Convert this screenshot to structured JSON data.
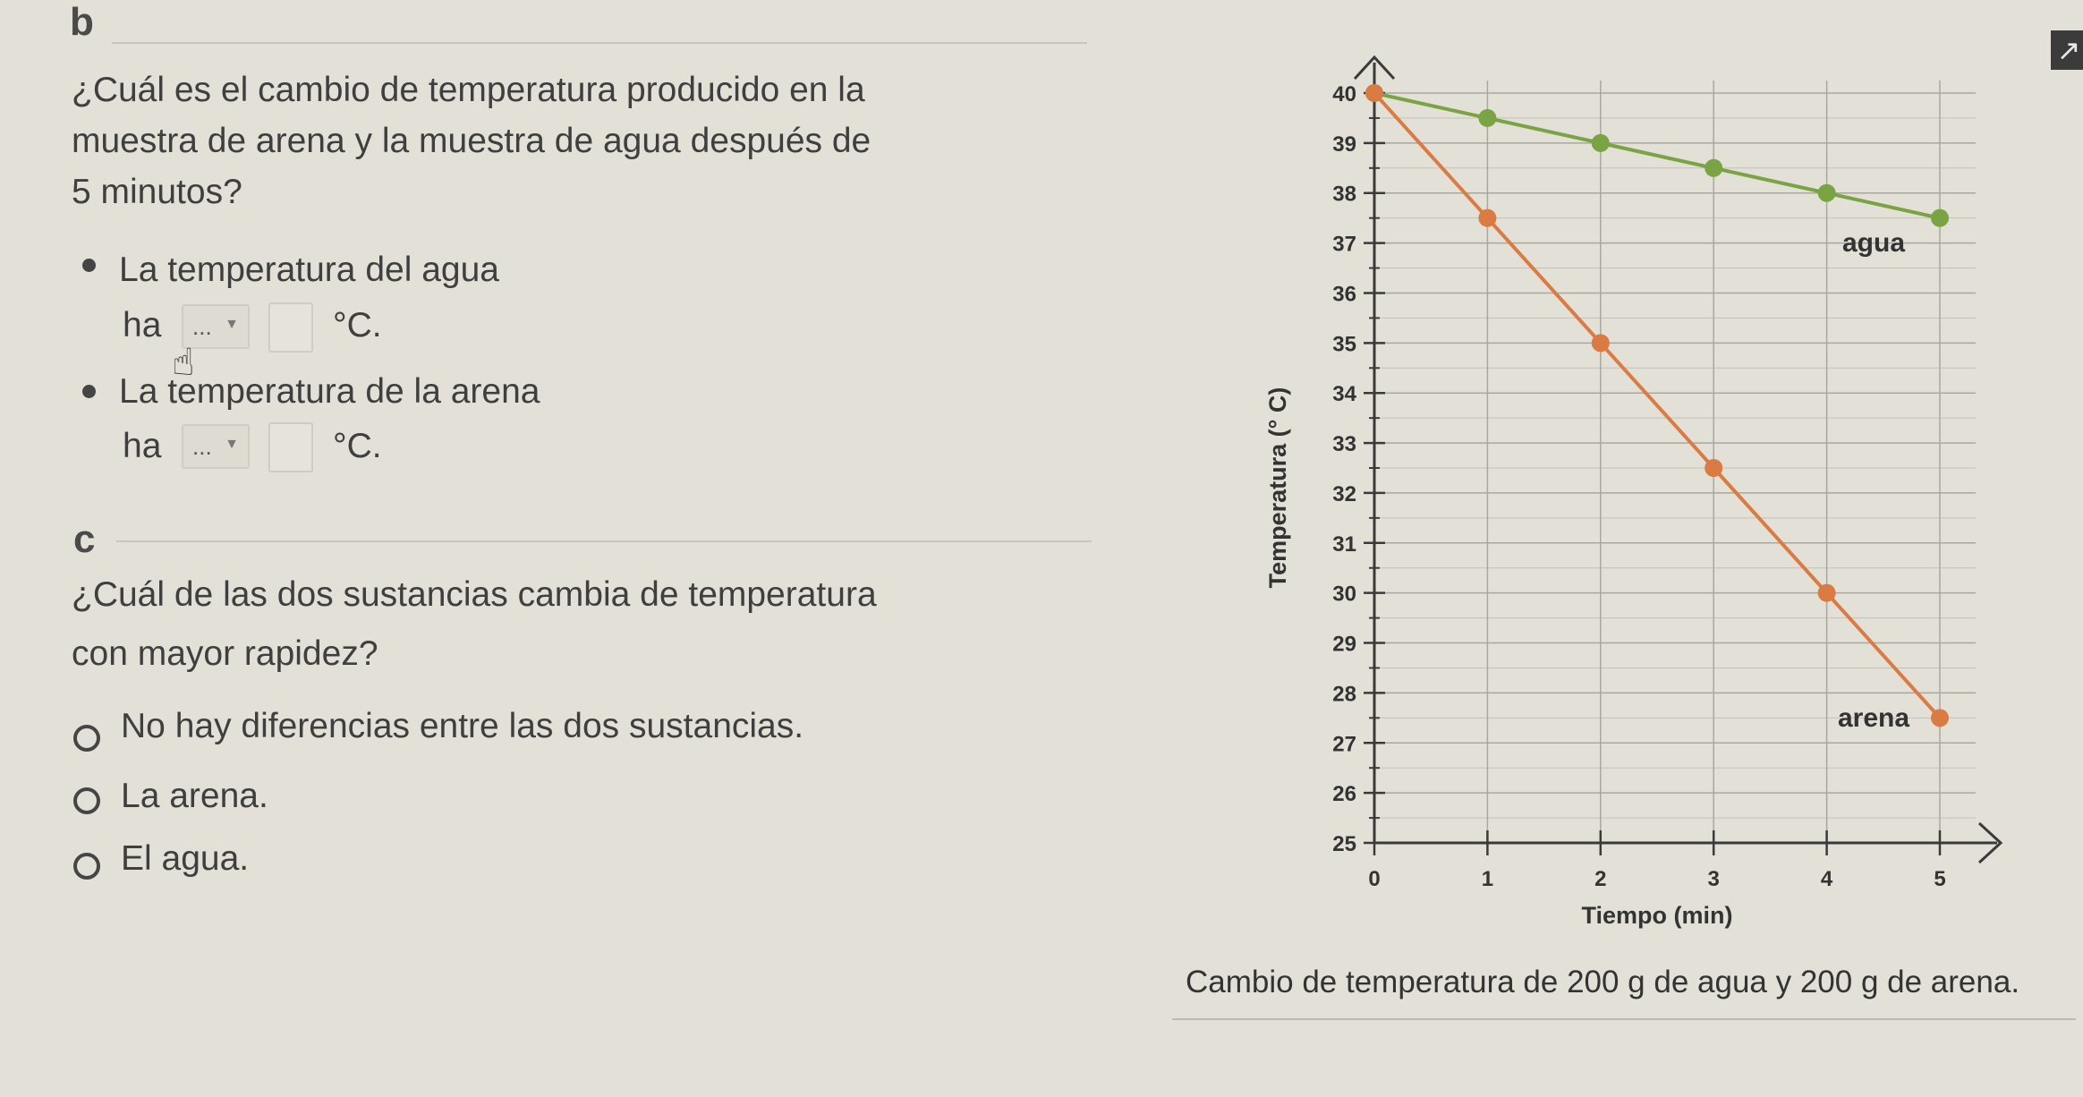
{
  "part_b": {
    "letter": "b",
    "question_lines": [
      "¿Cuál es el cambio de temperatura producido en la",
      "muestra de arena y la muestra de agua después de",
      "5 minutos?"
    ],
    "items": [
      {
        "label": "La temperatura del agua",
        "prefix": "ha",
        "dropdown_value": "...",
        "unit": "°C."
      },
      {
        "label": "La temperatura de la arena",
        "prefix": "ha",
        "dropdown_value": "...",
        "unit": "°C."
      }
    ]
  },
  "part_c": {
    "letter": "c",
    "question_lines": [
      "¿Cuál de las dos sustancias cambia de temperatura",
      "con mayor rapidez?"
    ],
    "options": [
      "No hay diferencias entre las dos sustancias.",
      "La arena.",
      "El agua."
    ]
  },
  "corner_button": {
    "icon": "arrow-up-right-icon",
    "glyph": "↗"
  },
  "chart_data": {
    "type": "line",
    "title": "",
    "xlabel": "Tiempo (min)",
    "ylabel": "Temperatura (° C)",
    "xlim": [
      0,
      5
    ],
    "ylim": [
      25,
      40
    ],
    "x_ticks": [
      0,
      1,
      2,
      3,
      4,
      5
    ],
    "y_ticks": [
      25,
      26,
      27,
      28,
      29,
      30,
      31,
      32,
      33,
      34,
      35,
      36,
      37,
      38,
      39,
      40
    ],
    "grid": true,
    "series": [
      {
        "name": "agua",
        "color": "#7aa444",
        "x": [
          0,
          1,
          2,
          3,
          4,
          5
        ],
        "y": [
          40,
          39.5,
          39,
          38.5,
          38,
          37.5
        ]
      },
      {
        "name": "arena",
        "color": "#d97b43",
        "x": [
          0,
          1,
          2,
          3,
          4,
          5
        ],
        "y": [
          40,
          37.5,
          35,
          32.5,
          30,
          27.5
        ]
      }
    ],
    "caption": "Cambio de temperatura de 200 g de agua y 200 g de arena."
  }
}
